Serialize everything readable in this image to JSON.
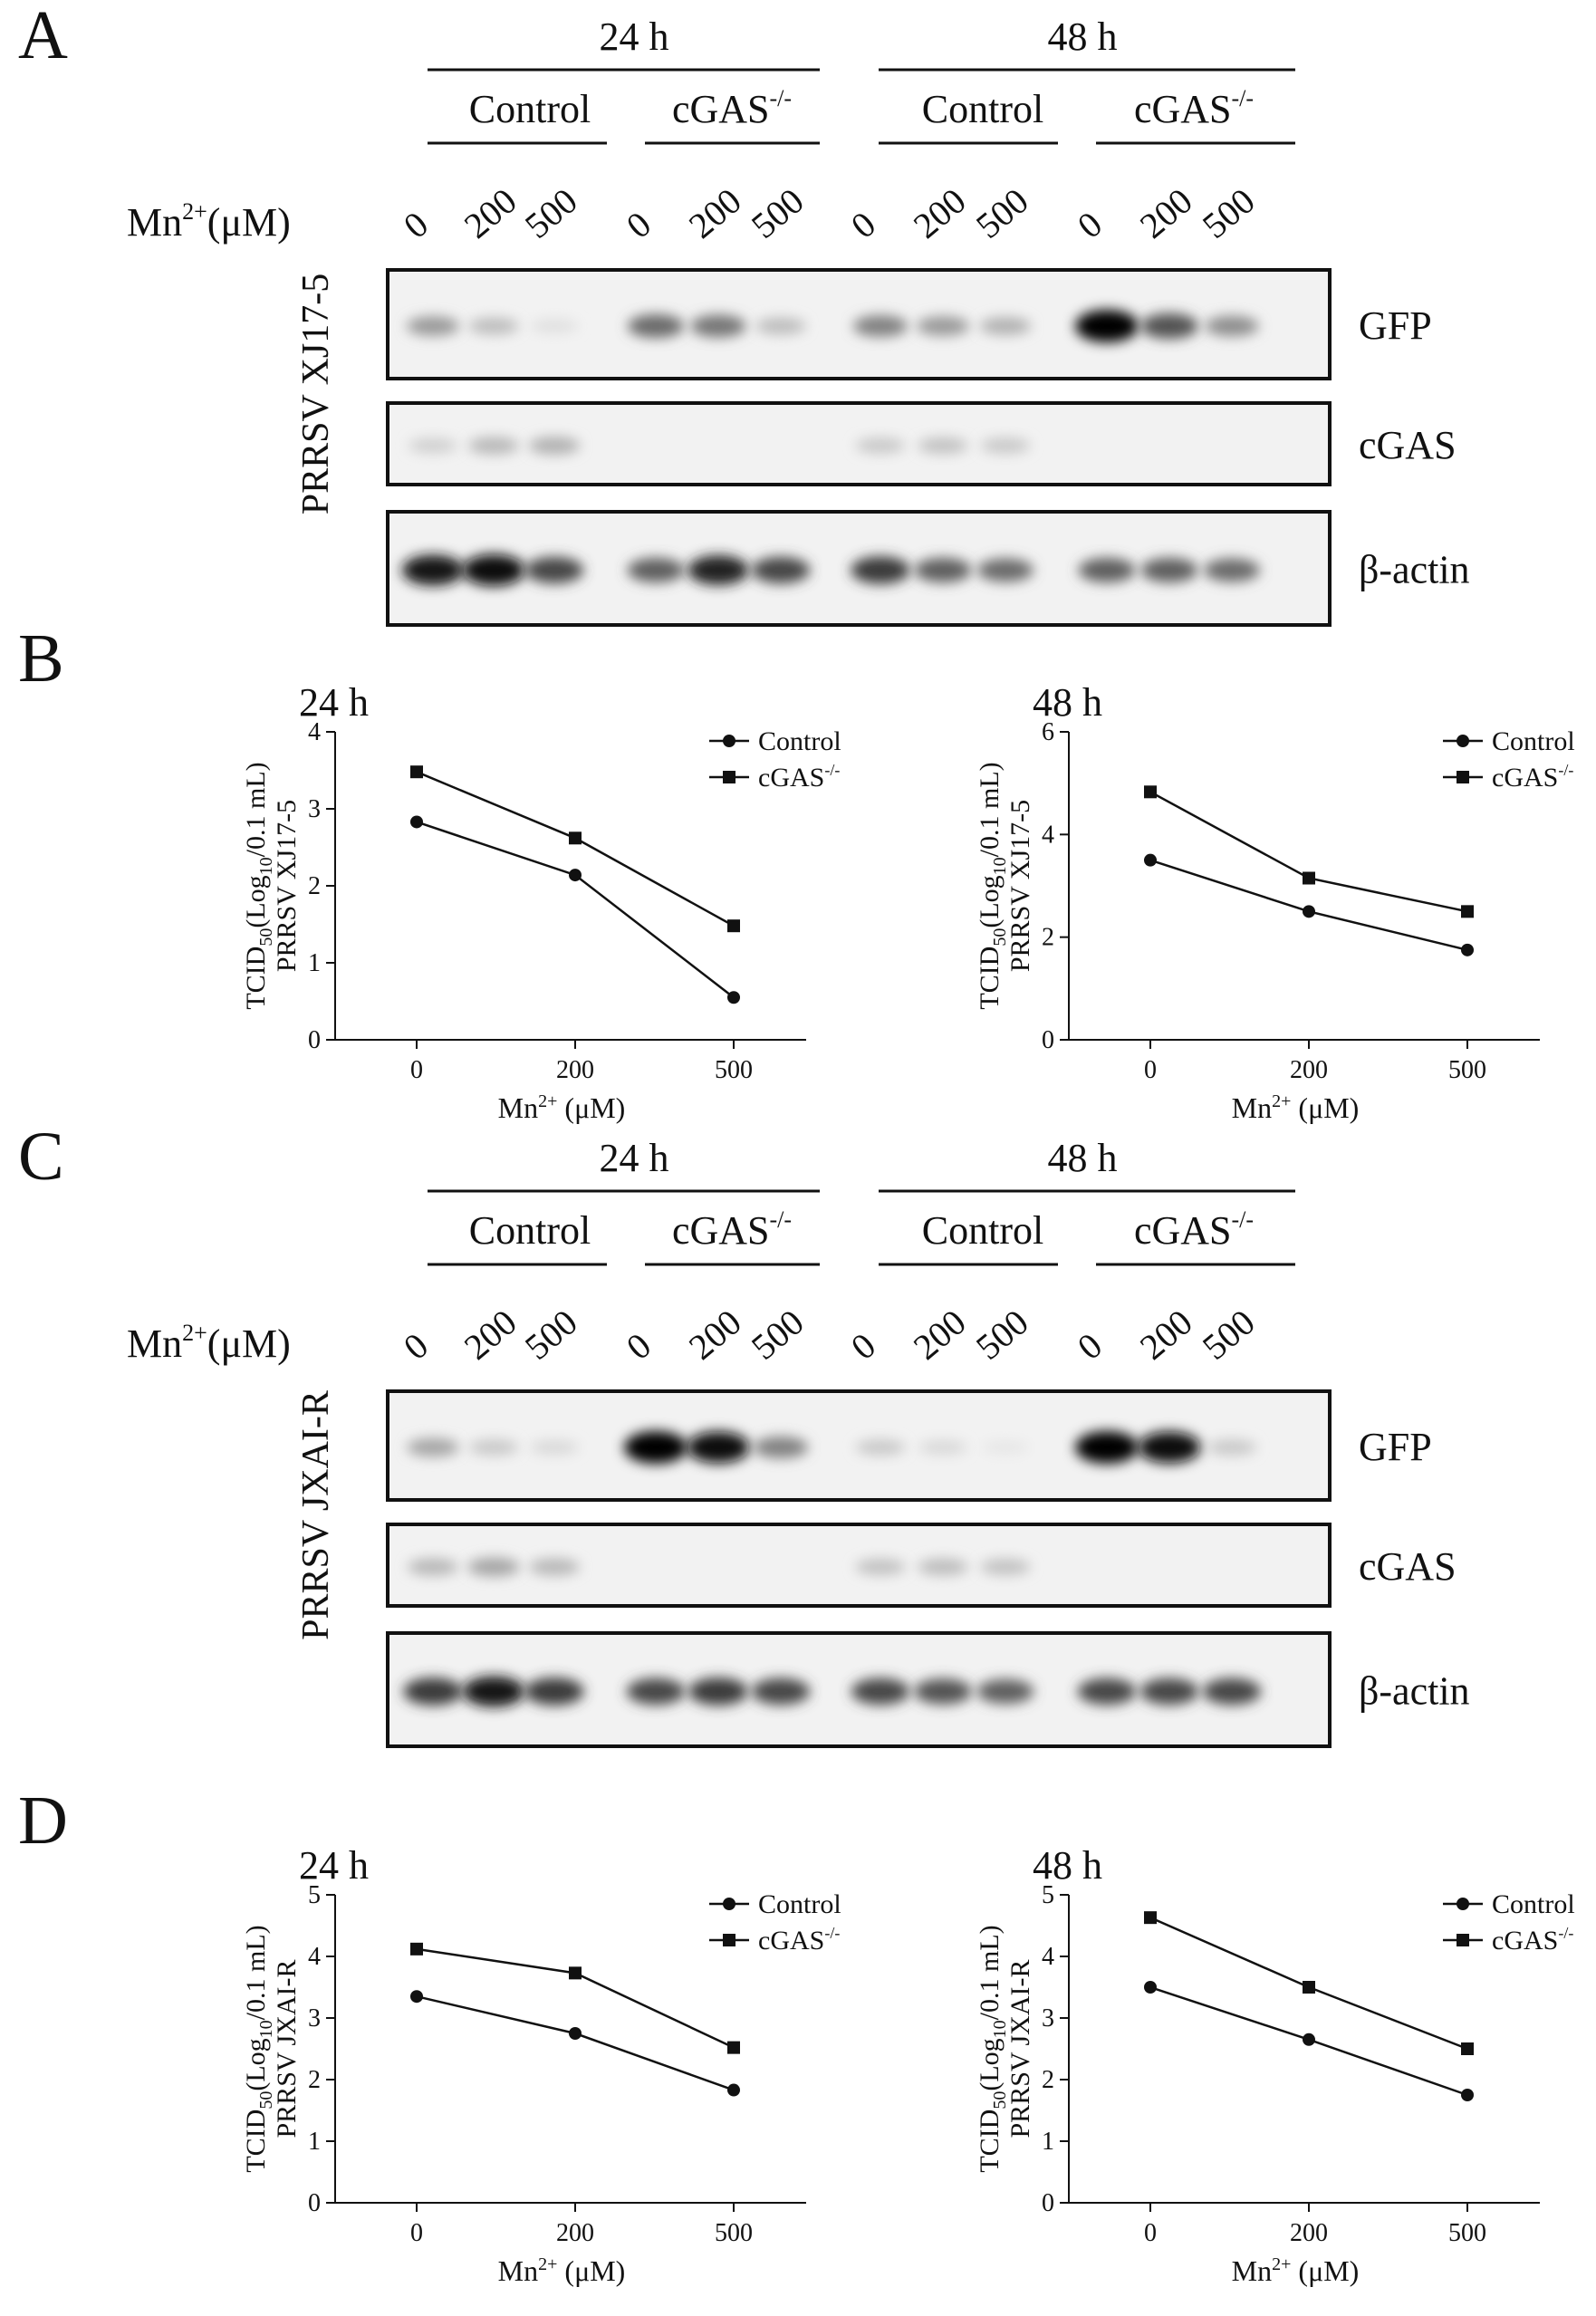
{
  "panels": {
    "A": {
      "letter": "A",
      "time_groups": [
        "24 h",
        "48 h"
      ],
      "group_labels": [
        "Control",
        "cGAS",
        "Control",
        "cGAS"
      ],
      "group_superscripts": [
        "",
        "-/-",
        "",
        "-/-"
      ],
      "treatment_label": "Mn",
      "treatment_sup": "2+",
      "treatment_unit": "(μM)",
      "doses": [
        "0",
        "200",
        "500",
        "0",
        "200",
        "500",
        "0",
        "200",
        "500",
        "0",
        "200",
        "500"
      ],
      "virus_label": "PRRSV XJ17-5",
      "blots": [
        {
          "label": "GFP",
          "intensities": [
            0.35,
            0.2,
            0.05,
            0.55,
            0.5,
            0.2,
            0.45,
            0.35,
            0.25,
            1.0,
            0.65,
            0.4
          ]
        },
        {
          "label": "cGAS",
          "intensities": [
            0.12,
            0.22,
            0.25,
            0.0,
            0.0,
            0.0,
            0.15,
            0.18,
            0.15,
            0.0,
            0.0,
            0.0
          ]
        },
        {
          "label": "β-actin",
          "intensities": [
            0.9,
            0.95,
            0.7,
            0.6,
            0.85,
            0.7,
            0.75,
            0.6,
            0.55,
            0.6,
            0.6,
            0.55
          ]
        }
      ]
    },
    "B": {
      "letter": "B",
      "chart_data": [
        {
          "type": "line",
          "title": "24 h",
          "ylabel_line1": "TCID",
          "ylabel_line1_sub": "50",
          "ylabel_line1_rest": "(Log",
          "ylabel_line1_sub2": "10",
          "ylabel_line1_end": "/0.1 mL)",
          "ylabel_line2": "PRRSV XJ17-5",
          "xlabel": "Mn",
          "xlabel_sup": "2+",
          "xlabel_unit": "(μM)",
          "x": [
            "0",
            "200",
            "500"
          ],
          "ylim": [
            0,
            4
          ],
          "yticks": [
            "0",
            "1",
            "2",
            "3",
            "4"
          ],
          "series": [
            {
              "name": "Control",
              "marker": "circle",
              "values": [
                2.83,
                2.14,
                0.55
              ]
            },
            {
              "name": "cGAS",
              "name_sup": "-/-",
              "marker": "square",
              "values": [
                3.48,
                2.62,
                1.48
              ]
            }
          ]
        },
        {
          "type": "line",
          "title": "48 h",
          "ylabel_line1": "TCID",
          "ylabel_line1_sub": "50",
          "ylabel_line1_rest": "(Log",
          "ylabel_line1_sub2": "10",
          "ylabel_line1_end": "/0.1 mL)",
          "ylabel_line2": "PRRSV XJ17-5",
          "xlabel": "Mn",
          "xlabel_sup": "2+",
          "xlabel_unit": "(μM)",
          "x": [
            "0",
            "200",
            "500"
          ],
          "ylim": [
            0,
            6
          ],
          "yticks": [
            "0",
            "2",
            "4",
            "6"
          ],
          "series": [
            {
              "name": "Control",
              "marker": "circle",
              "values": [
                3.5,
                2.5,
                1.75
              ]
            },
            {
              "name": "cGAS",
              "name_sup": "-/-",
              "marker": "square",
              "values": [
                4.83,
                3.15,
                2.5
              ]
            }
          ]
        }
      ]
    },
    "C": {
      "letter": "C",
      "time_groups": [
        "24 h",
        "48 h"
      ],
      "group_labels": [
        "Control",
        "cGAS",
        "Control",
        "cGAS"
      ],
      "group_superscripts": [
        "",
        "-/-",
        "",
        "-/-"
      ],
      "treatment_label": "Mn",
      "treatment_sup": "2+",
      "treatment_unit": "(μM)",
      "doses": [
        "0",
        "200",
        "500",
        "0",
        "200",
        "500",
        "0",
        "200",
        "500",
        "0",
        "200",
        "500"
      ],
      "virus_label": "PRRSV JXAI-R",
      "blots": [
        {
          "label": "GFP",
          "intensities": [
            0.3,
            0.15,
            0.08,
            1.0,
            0.95,
            0.45,
            0.15,
            0.08,
            0.02,
            1.0,
            0.95,
            0.15
          ]
        },
        {
          "label": "cGAS",
          "intensities": [
            0.22,
            0.3,
            0.22,
            0.0,
            0.0,
            0.0,
            0.18,
            0.2,
            0.18,
            0.0,
            0.0,
            0.0
          ]
        },
        {
          "label": "β-actin",
          "intensities": [
            0.75,
            0.9,
            0.75,
            0.7,
            0.75,
            0.7,
            0.7,
            0.65,
            0.6,
            0.7,
            0.7,
            0.7
          ]
        }
      ]
    },
    "D": {
      "letter": "D",
      "chart_data": [
        {
          "type": "line",
          "title": "24 h",
          "ylabel_line1": "TCID",
          "ylabel_line1_sub": "50",
          "ylabel_line1_rest": "(Log",
          "ylabel_line1_sub2": "10",
          "ylabel_line1_end": "/0.1 mL)",
          "ylabel_line2": "PRRSV JXAI-R",
          "xlabel": "Mn",
          "xlabel_sup": "2+",
          "xlabel_unit": "(μM)",
          "x": [
            "0",
            "200",
            "500"
          ],
          "ylim": [
            0,
            5
          ],
          "yticks": [
            "0",
            "1",
            "2",
            "3",
            "4",
            "5"
          ],
          "series": [
            {
              "name": "Control",
              "marker": "circle",
              "values": [
                3.35,
                2.75,
                1.83
              ]
            },
            {
              "name": "cGAS",
              "name_sup": "-/-",
              "marker": "square",
              "values": [
                4.12,
                3.73,
                2.52
              ]
            }
          ]
        },
        {
          "type": "line",
          "title": "48 h",
          "ylabel_line1": "TCID",
          "ylabel_line1_sub": "50",
          "ylabel_line1_rest": "(Log",
          "ylabel_line1_sub2": "10",
          "ylabel_line1_end": "/0.1 mL)",
          "ylabel_line2": "PRRSV JXAI-R",
          "xlabel": "Mn",
          "xlabel_sup": "2+",
          "xlabel_unit": "(μM)",
          "x": [
            "0",
            "200",
            "500"
          ],
          "ylim": [
            0,
            5
          ],
          "yticks": [
            "0",
            "1",
            "2",
            "3",
            "4",
            "5"
          ],
          "series": [
            {
              "name": "Control",
              "marker": "circle",
              "values": [
                3.5,
                2.65,
                1.75
              ]
            },
            {
              "name": "cGAS",
              "name_sup": "-/-",
              "marker": "square",
              "values": [
                4.63,
                3.5,
                2.5
              ]
            }
          ]
        }
      ]
    }
  }
}
